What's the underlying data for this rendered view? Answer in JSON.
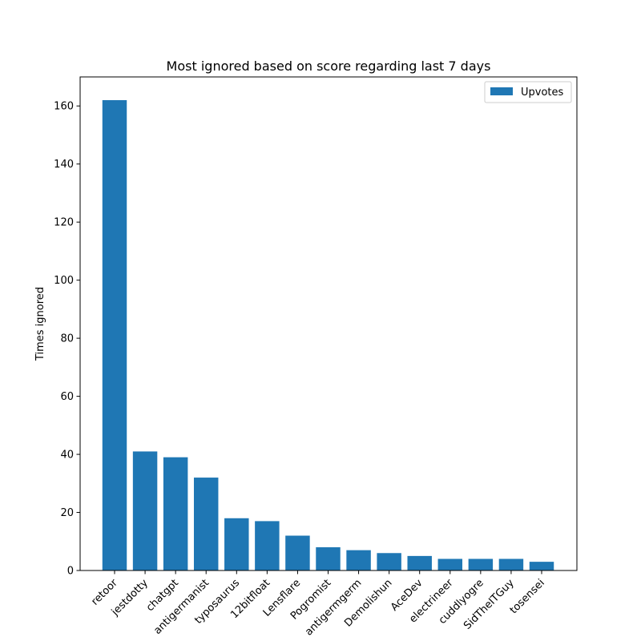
{
  "chart_data": {
    "type": "bar",
    "title": "Most ignored based on score regarding last 7 days",
    "xlabel": "",
    "ylabel": "Times ignored",
    "categories": [
      "retoor",
      "jestdotty",
      "chatgpt",
      "antigermanist",
      "typosaurus",
      "12bitfloat",
      "Lensflare",
      "Pogromist",
      "antigermgerm",
      "Demolishun",
      "AceDev",
      "electrineer",
      "cuddlyogre",
      "SidTheITGuy",
      "tosensei"
    ],
    "series": [
      {
        "name": "Upvotes",
        "values": [
          162,
          41,
          39,
          32,
          18,
          17,
          12,
          8,
          7,
          6,
          5,
          4,
          4,
          4,
          3
        ]
      }
    ],
    "ylim": [
      0,
      170
    ],
    "yticks": [
      0,
      20,
      40,
      60,
      80,
      100,
      120,
      140,
      160
    ],
    "legend": {
      "position": "top-right",
      "entries": [
        "Upvotes"
      ]
    },
    "grid": false,
    "colors": {
      "bar": "#1f77b4"
    }
  }
}
